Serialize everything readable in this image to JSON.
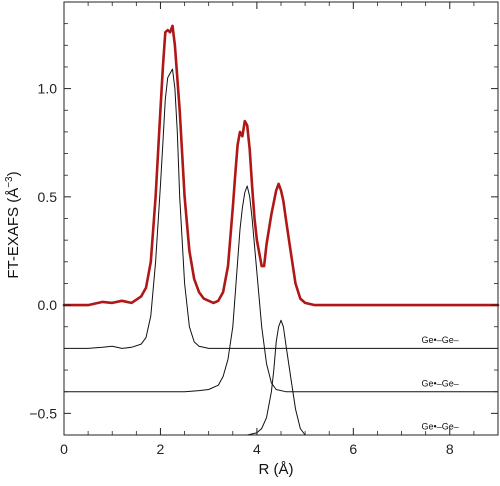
{
  "chart_data": {
    "type": "line",
    "title": "",
    "xlabel": "R (Å)",
    "ylabel": "FT-EXAFS (Å",
    "ylabel_superscript": "−3",
    "ylabel_close": ")",
    "xlim": [
      0,
      9
    ],
    "ylim": [
      -0.6,
      1.4
    ],
    "xticks": [
      0,
      2,
      4,
      6,
      8
    ],
    "xtick_labels": [
      "0",
      "2",
      "4",
      "6",
      "8"
    ],
    "yticks": [
      -0.5,
      0.0,
      0.5,
      1.0
    ],
    "ytick_labels": [
      "−0.5",
      "0.0",
      "0.5",
      "1.0"
    ],
    "grid": false,
    "series": [
      {
        "color": "#b01717",
        "width": 2.6,
        "x": [
          0,
          0.5,
          0.8,
          1.0,
          1.2,
          1.4,
          1.6,
          1.7,
          1.8,
          1.9,
          2.0,
          2.05,
          2.1,
          2.15,
          2.2,
          2.25,
          2.3,
          2.4,
          2.5,
          2.6,
          2.7,
          2.8,
          2.9,
          3.0,
          3.1,
          3.2,
          3.3,
          3.4,
          3.5,
          3.55,
          3.6,
          3.65,
          3.7,
          3.75,
          3.8,
          3.85,
          3.9,
          3.95,
          4.0,
          4.1,
          4.15,
          4.2,
          4.3,
          4.4,
          4.45,
          4.5,
          4.55,
          4.6,
          4.7,
          4.8,
          4.9,
          5.0,
          5.2,
          5.5,
          6.0,
          7.0,
          8.0,
          9.0
        ],
        "y": [
          0.0,
          0.0,
          0.015,
          0.01,
          0.02,
          0.01,
          0.04,
          0.08,
          0.2,
          0.5,
          0.9,
          1.1,
          1.26,
          1.27,
          1.26,
          1.29,
          1.2,
          0.9,
          0.5,
          0.25,
          0.12,
          0.06,
          0.03,
          0.02,
          0.01,
          0.02,
          0.06,
          0.18,
          0.45,
          0.6,
          0.74,
          0.8,
          0.78,
          0.85,
          0.83,
          0.72,
          0.55,
          0.4,
          0.3,
          0.18,
          0.18,
          0.28,
          0.42,
          0.53,
          0.56,
          0.53,
          0.48,
          0.4,
          0.25,
          0.1,
          0.03,
          0.01,
          0.0,
          0.0,
          0.0,
          0.0,
          0.0,
          0.0
        ]
      },
      {
        "color": "#111111",
        "width": 1.0,
        "x": [
          0,
          0.5,
          0.8,
          1.0,
          1.2,
          1.4,
          1.6,
          1.7,
          1.8,
          1.9,
          2.0,
          2.05,
          2.1,
          2.15,
          2.2,
          2.25,
          2.3,
          2.35,
          2.4,
          2.5,
          2.6,
          2.7,
          2.8,
          3.0,
          3.5,
          4.0,
          5.0,
          9.0
        ],
        "y": [
          -0.2,
          -0.2,
          -0.195,
          -0.19,
          -0.2,
          -0.195,
          -0.18,
          -0.15,
          -0.05,
          0.2,
          0.55,
          0.75,
          0.95,
          1.05,
          1.07,
          1.09,
          1.0,
          0.8,
          0.5,
          0.1,
          -0.1,
          -0.17,
          -0.19,
          -0.2,
          -0.2,
          -0.2,
          -0.2,
          -0.2
        ]
      },
      {
        "color": "#111111",
        "width": 1.0,
        "x": [
          0,
          2.5,
          2.8,
          3.0,
          3.2,
          3.3,
          3.4,
          3.5,
          3.55,
          3.6,
          3.65,
          3.7,
          3.75,
          3.8,
          3.85,
          3.9,
          4.0,
          4.1,
          4.2,
          4.3,
          4.4,
          4.6,
          5.0,
          9.0
        ],
        "y": [
          -0.4,
          -0.4,
          -0.395,
          -0.39,
          -0.37,
          -0.33,
          -0.25,
          -0.1,
          0.05,
          0.2,
          0.35,
          0.45,
          0.52,
          0.55,
          0.5,
          0.4,
          0.15,
          -0.1,
          -0.27,
          -0.36,
          -0.39,
          -0.4,
          -0.4,
          -0.4
        ]
      },
      {
        "color": "#111111",
        "width": 1.0,
        "x": [
          0,
          3.5,
          3.8,
          4.0,
          4.1,
          4.2,
          4.3,
          4.35,
          4.4,
          4.45,
          4.5,
          4.55,
          4.6,
          4.7,
          4.8,
          4.9,
          5.0,
          5.1,
          6.0,
          9.0
        ],
        "y": [
          -0.6,
          -0.6,
          -0.6,
          -0.59,
          -0.57,
          -0.52,
          -0.4,
          -0.3,
          -0.17,
          -0.1,
          -0.07,
          -0.1,
          -0.18,
          -0.33,
          -0.48,
          -0.57,
          -0.6,
          -0.6,
          -0.6,
          -0.6
        ]
      }
    ],
    "annotations": [
      {
        "text": "Ge•–Ge–",
        "x": 7.8,
        "y": -0.175
      },
      {
        "text": "Ge•–Ge–",
        "x": 7.8,
        "y": -0.375
      },
      {
        "text": "Ge•–Ge–",
        "x": 7.8,
        "y": -0.575
      }
    ]
  }
}
